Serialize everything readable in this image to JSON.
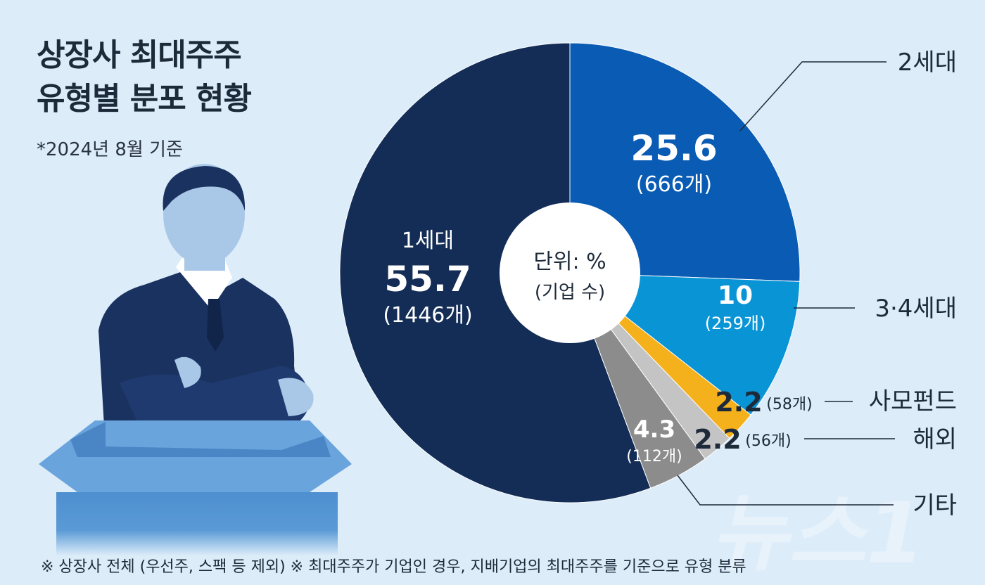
{
  "title_lines": [
    "상장사 최대주주",
    "유형별 분포 현황"
  ],
  "subtitle": "*2024년 8월 기준",
  "center_label": {
    "line1": "단위: %",
    "line2": "(기업 수)"
  },
  "footnote": "※ 상장사 전체 (우선주, 스팩 등 제외)  ※ 최대주주가 기업인 경우, 지배기업의 최대주주를 기준으로 유형 분류",
  "watermark": "뉴스1",
  "colors": {
    "background": "#dcecf9",
    "gen2": "#0a5bb3",
    "gen34": "#0994d6",
    "fund": "#f5b11c",
    "foreign": "#c4c4c4",
    "other": "#8c8c8c",
    "gen1": "#132d56"
  },
  "chart_data": {
    "type": "pie",
    "unit": "%",
    "slices": [
      {
        "name": "2세대",
        "value": 25.6,
        "value_label": "25.6",
        "count_label": "(666개)"
      },
      {
        "name": "3·4세대",
        "value": 10,
        "value_label": "10",
        "count_label": "(259개)"
      },
      {
        "name": "사모펀드",
        "value": 2.2,
        "value_label": "2.2",
        "count_label": "(58개)"
      },
      {
        "name": "해외",
        "value": 2.2,
        "value_label": "2.2",
        "count_label": "(56개)"
      },
      {
        "name": "기타",
        "value": 4.3,
        "value_label": "4.3",
        "count_label": "(112개)"
      },
      {
        "name": "1세대",
        "value": 55.7,
        "value_label": "55.7",
        "count_label": "(1446개)"
      }
    ]
  }
}
